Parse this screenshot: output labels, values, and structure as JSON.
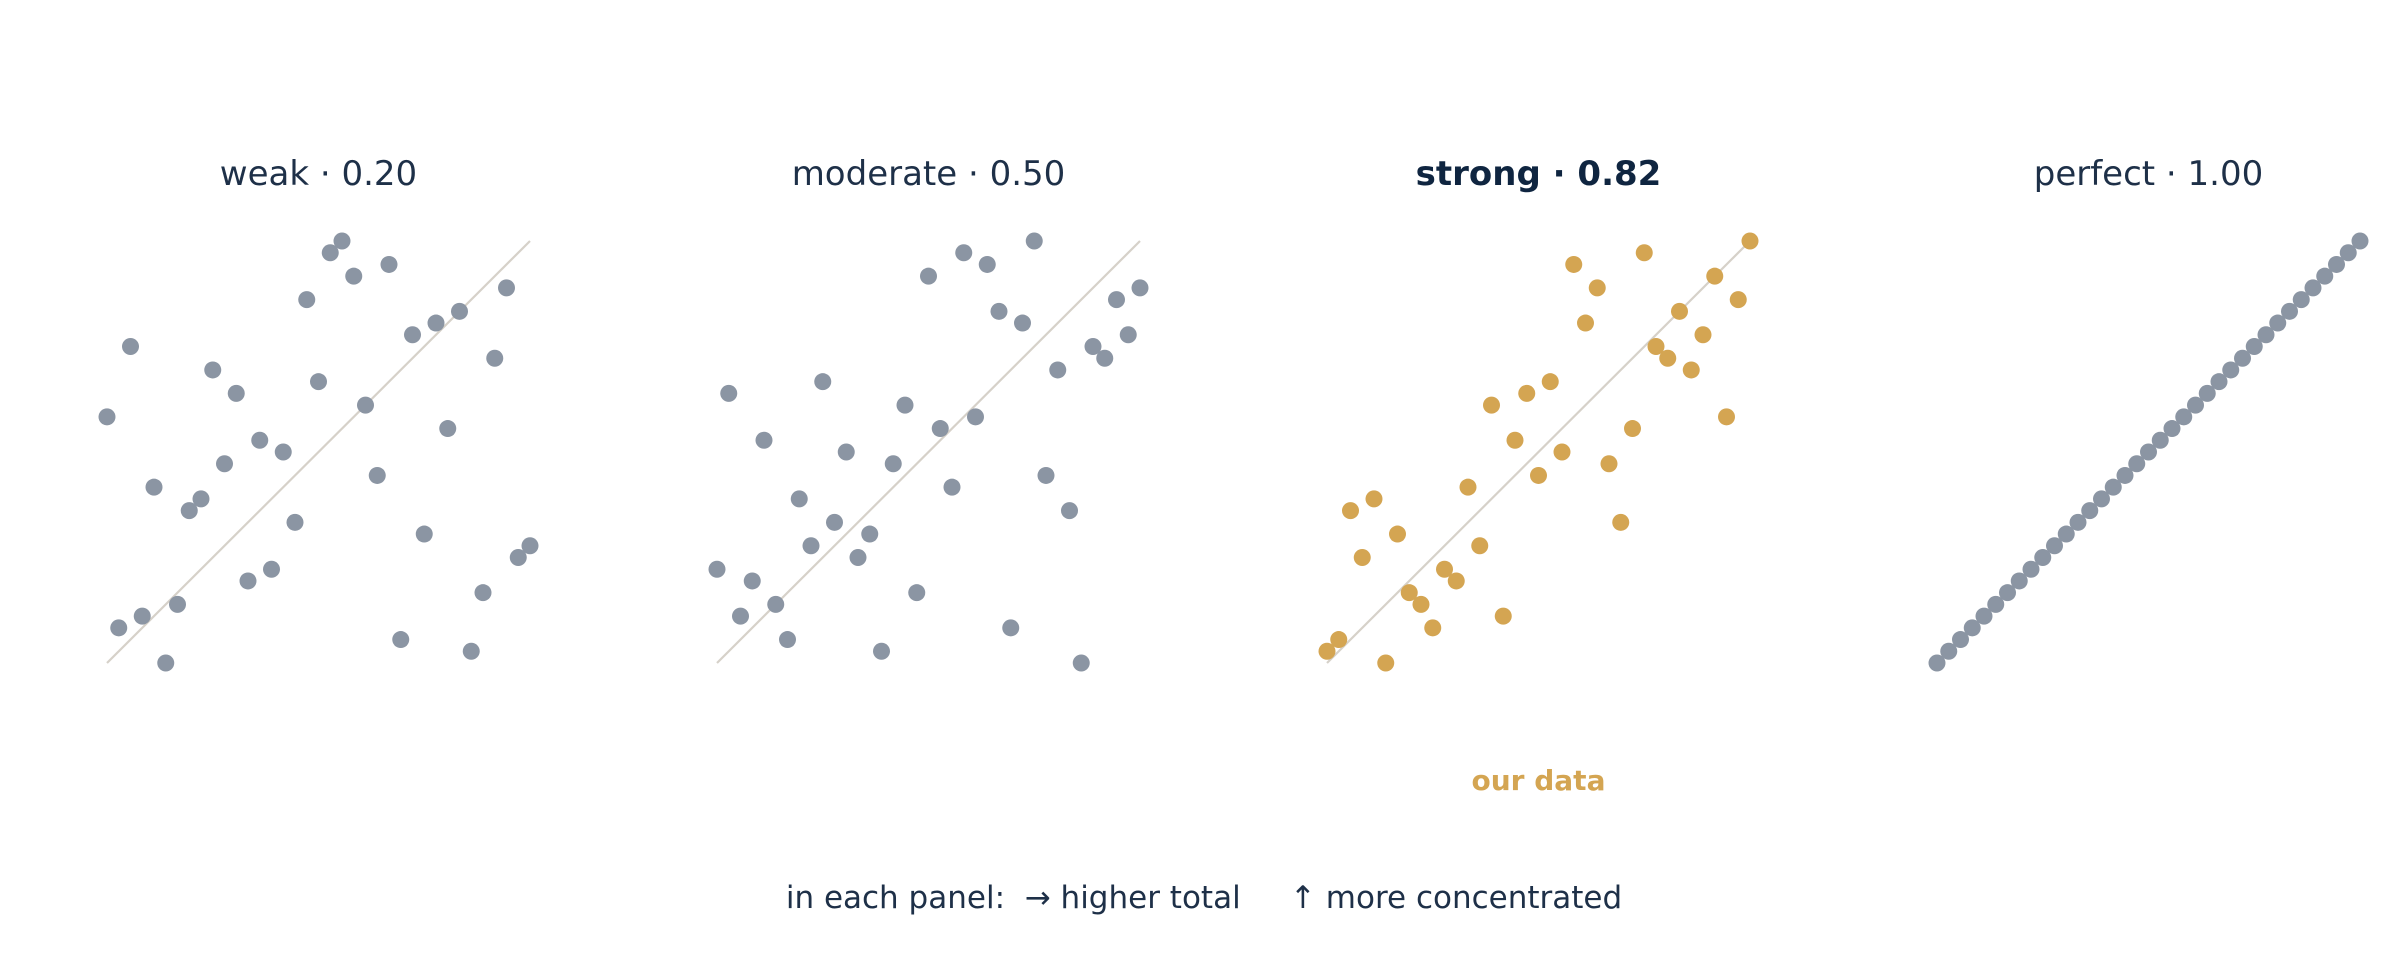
{
  "chart_data": {
    "type": "scatter",
    "xlim": [
      0,
      36
    ],
    "ylim": [
      0,
      36
    ],
    "grid": false,
    "colors": {
      "default": "#8b95a3",
      "highlight": "#d4a552",
      "diagonal": "#d6d1c9",
      "text": "#1e3048"
    },
    "panels": [
      {
        "title": "weak · 0.20",
        "highlight": false,
        "annotation": "",
        "points": [
          {
            "x": 0,
            "y": 21
          },
          {
            "x": 1,
            "y": 3
          },
          {
            "x": 2,
            "y": 27
          },
          {
            "x": 3,
            "y": 4
          },
          {
            "x": 4,
            "y": 15
          },
          {
            "x": 5,
            "y": 0
          },
          {
            "x": 6,
            "y": 5
          },
          {
            "x": 7,
            "y": 13
          },
          {
            "x": 8,
            "y": 14
          },
          {
            "x": 9,
            "y": 25
          },
          {
            "x": 10,
            "y": 17
          },
          {
            "x": 11,
            "y": 23
          },
          {
            "x": 12,
            "y": 7
          },
          {
            "x": 13,
            "y": 19
          },
          {
            "x": 14,
            "y": 8
          },
          {
            "x": 15,
            "y": 18
          },
          {
            "x": 16,
            "y": 12
          },
          {
            "x": 17,
            "y": 31
          },
          {
            "x": 18,
            "y": 24
          },
          {
            "x": 19,
            "y": 35
          },
          {
            "x": 20,
            "y": 36
          },
          {
            "x": 21,
            "y": 33
          },
          {
            "x": 22,
            "y": 22
          },
          {
            "x": 23,
            "y": 16
          },
          {
            "x": 24,
            "y": 34
          },
          {
            "x": 25,
            "y": 2
          },
          {
            "x": 26,
            "y": 28
          },
          {
            "x": 27,
            "y": 11
          },
          {
            "x": 28,
            "y": 29
          },
          {
            "x": 29,
            "y": 20
          },
          {
            "x": 30,
            "y": 30
          },
          {
            "x": 31,
            "y": 1
          },
          {
            "x": 32,
            "y": 6
          },
          {
            "x": 33,
            "y": 26
          },
          {
            "x": 34,
            "y": 32
          },
          {
            "x": 35,
            "y": 9
          },
          {
            "x": 36,
            "y": 10
          }
        ]
      },
      {
        "title": "moderate · 0.50",
        "highlight": false,
        "annotation": "",
        "points": [
          {
            "x": 0,
            "y": 8
          },
          {
            "x": 1,
            "y": 23
          },
          {
            "x": 2,
            "y": 4
          },
          {
            "x": 3,
            "y": 7
          },
          {
            "x": 4,
            "y": 19
          },
          {
            "x": 5,
            "y": 5
          },
          {
            "x": 6,
            "y": 2
          },
          {
            "x": 7,
            "y": 14
          },
          {
            "x": 8,
            "y": 10
          },
          {
            "x": 9,
            "y": 24
          },
          {
            "x": 10,
            "y": 12
          },
          {
            "x": 11,
            "y": 18
          },
          {
            "x": 12,
            "y": 9
          },
          {
            "x": 13,
            "y": 11
          },
          {
            "x": 14,
            "y": 1
          },
          {
            "x": 15,
            "y": 17
          },
          {
            "x": 16,
            "y": 22
          },
          {
            "x": 17,
            "y": 6
          },
          {
            "x": 18,
            "y": 33
          },
          {
            "x": 19,
            "y": 20
          },
          {
            "x": 20,
            "y": 15
          },
          {
            "x": 21,
            "y": 35
          },
          {
            "x": 22,
            "y": 21
          },
          {
            "x": 23,
            "y": 34
          },
          {
            "x": 24,
            "y": 30
          },
          {
            "x": 25,
            "y": 3
          },
          {
            "x": 26,
            "y": 29
          },
          {
            "x": 27,
            "y": 36
          },
          {
            "x": 28,
            "y": 16
          },
          {
            "x": 29,
            "y": 25
          },
          {
            "x": 30,
            "y": 13
          },
          {
            "x": 31,
            "y": 0
          },
          {
            "x": 32,
            "y": 27
          },
          {
            "x": 33,
            "y": 26
          },
          {
            "x": 34,
            "y": 31
          },
          {
            "x": 35,
            "y": 28
          },
          {
            "x": 36,
            "y": 32
          }
        ]
      },
      {
        "title": "strong · 0.82",
        "highlight": true,
        "annotation": "our data",
        "points": [
          {
            "x": 0,
            "y": 1
          },
          {
            "x": 1,
            "y": 2
          },
          {
            "x": 2,
            "y": 13
          },
          {
            "x": 3,
            "y": 9
          },
          {
            "x": 4,
            "y": 14
          },
          {
            "x": 5,
            "y": 0
          },
          {
            "x": 6,
            "y": 11
          },
          {
            "x": 7,
            "y": 6
          },
          {
            "x": 8,
            "y": 5
          },
          {
            "x": 9,
            "y": 3
          },
          {
            "x": 10,
            "y": 8
          },
          {
            "x": 11,
            "y": 7
          },
          {
            "x": 12,
            "y": 15
          },
          {
            "x": 13,
            "y": 10
          },
          {
            "x": 14,
            "y": 22
          },
          {
            "x": 15,
            "y": 4
          },
          {
            "x": 16,
            "y": 19
          },
          {
            "x": 17,
            "y": 23
          },
          {
            "x": 18,
            "y": 16
          },
          {
            "x": 19,
            "y": 24
          },
          {
            "x": 20,
            "y": 18
          },
          {
            "x": 21,
            "y": 34
          },
          {
            "x": 22,
            "y": 29
          },
          {
            "x": 23,
            "y": 32
          },
          {
            "x": 24,
            "y": 17
          },
          {
            "x": 25,
            "y": 12
          },
          {
            "x": 26,
            "y": 20
          },
          {
            "x": 27,
            "y": 35
          },
          {
            "x": 28,
            "y": 27
          },
          {
            "x": 29,
            "y": 26
          },
          {
            "x": 30,
            "y": 30
          },
          {
            "x": 31,
            "y": 25
          },
          {
            "x": 32,
            "y": 28
          },
          {
            "x": 33,
            "y": 33
          },
          {
            "x": 34,
            "y": 21
          },
          {
            "x": 35,
            "y": 31
          },
          {
            "x": 36,
            "y": 36
          }
        ]
      },
      {
        "title": "perfect · 1.00",
        "highlight": false,
        "annotation": "",
        "points": [
          {
            "x": 0,
            "y": 0
          },
          {
            "x": 1,
            "y": 1
          },
          {
            "x": 2,
            "y": 2
          },
          {
            "x": 3,
            "y": 3
          },
          {
            "x": 4,
            "y": 4
          },
          {
            "x": 5,
            "y": 5
          },
          {
            "x": 6,
            "y": 6
          },
          {
            "x": 7,
            "y": 7
          },
          {
            "x": 8,
            "y": 8
          },
          {
            "x": 9,
            "y": 9
          },
          {
            "x": 10,
            "y": 10
          },
          {
            "x": 11,
            "y": 11
          },
          {
            "x": 12,
            "y": 12
          },
          {
            "x": 13,
            "y": 13
          },
          {
            "x": 14,
            "y": 14
          },
          {
            "x": 15,
            "y": 15
          },
          {
            "x": 16,
            "y": 16
          },
          {
            "x": 17,
            "y": 17
          },
          {
            "x": 18,
            "y": 18
          },
          {
            "x": 19,
            "y": 19
          },
          {
            "x": 20,
            "y": 20
          },
          {
            "x": 21,
            "y": 21
          },
          {
            "x": 22,
            "y": 22
          },
          {
            "x": 23,
            "y": 23
          },
          {
            "x": 24,
            "y": 24
          },
          {
            "x": 25,
            "y": 25
          },
          {
            "x": 26,
            "y": 26
          },
          {
            "x": 27,
            "y": 27
          },
          {
            "x": 28,
            "y": 28
          },
          {
            "x": 29,
            "y": 29
          },
          {
            "x": 30,
            "y": 30
          },
          {
            "x": 31,
            "y": 31
          },
          {
            "x": 32,
            "y": 32
          },
          {
            "x": 33,
            "y": 33
          },
          {
            "x": 34,
            "y": 34
          },
          {
            "x": 35,
            "y": 35
          },
          {
            "x": 36,
            "y": 36
          }
        ]
      }
    ],
    "footer": "in each panel:  → higher total     ↑ more concentrated"
  }
}
